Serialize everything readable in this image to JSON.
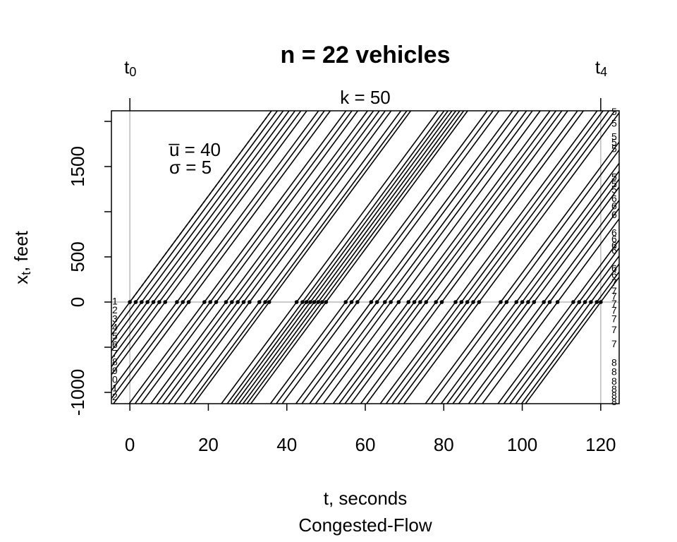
{
  "chart_data": {
    "type": "trajectory",
    "title": "n = 22 vehicles",
    "x_label": "t, seconds",
    "subtitle": "Congested-Flow",
    "y_label": {
      "main": "x",
      "sub": "t",
      "rest": ", feet"
    },
    "top_label": "k = 50",
    "top_ticks": [
      {
        "value": 0,
        "label": "t",
        "sub": "0"
      },
      {
        "value": 120,
        "label": "t",
        "sub": "4"
      }
    ],
    "annotations": {
      "mean": "u̅ = 40",
      "sd": "σ = 5",
      "mean_speed": 40
    },
    "xlim": [
      -4.7,
      124.7
    ],
    "ylim": [
      -1125,
      2117
    ],
    "xticks": [
      0,
      20,
      40,
      60,
      80,
      100,
      120
    ],
    "yticks": [
      -1000,
      {
        "value": -500,
        "label": null
      },
      0,
      500,
      {
        "value": 1000,
        "label": null
      },
      1500,
      {
        "value": 2000,
        "label": null
      }
    ],
    "color": "#000000",
    "crossings": [
      0,
      1.5,
      3,
      4.5,
      6,
      7.5,
      9,
      12,
      13.5,
      15,
      19,
      20.5,
      22,
      24.5,
      26,
      27.5,
      29,
      30.5,
      33,
      34.5,
      35.5,
      42.5,
      44,
      45,
      46,
      47,
      48,
      49,
      50,
      55,
      56.5,
      58,
      61.5,
      63,
      65,
      66.5,
      68.5,
      71,
      72.5,
      74,
      75.5,
      78,
      79.5,
      83,
      84.5,
      86,
      87.5,
      89,
      94.5,
      96,
      98.5,
      100,
      101.5,
      103,
      105.5,
      107,
      109,
      113,
      114.5,
      116,
      117.5,
      119,
      120
    ],
    "left_labels": [
      {
        "value": 0,
        "label": "1"
      },
      {
        "value": -96,
        "label": "2"
      },
      {
        "value": -192,
        "label": "3"
      },
      {
        "value": -288,
        "label": "4"
      },
      {
        "value": -384,
        "label": "5"
      },
      {
        "value": -480,
        "label": "6"
      },
      {
        "value": -576,
        "label": "7"
      },
      {
        "value": -672,
        "label": "8"
      },
      {
        "value": -768,
        "label": "9"
      },
      {
        "value": -864,
        "label": "0"
      },
      {
        "value": -960,
        "label": "1"
      },
      {
        "value": -1056,
        "label": "2"
      }
    ],
    "right_labels": [
      {
        "value": 2100,
        "label": "5"
      },
      {
        "value": 1970,
        "label": "5"
      },
      {
        "value": 1820,
        "label": "5"
      },
      {
        "value": 1760,
        "label": "5"
      },
      {
        "value": 1690,
        "label": "5"
      },
      {
        "value": 1375,
        "label": "5"
      },
      {
        "value": 1300,
        "label": "5"
      },
      {
        "value": 1235,
        "label": "5"
      },
      {
        "value": 1140,
        "label": "6"
      },
      {
        "value": 1055,
        "label": "6"
      },
      {
        "value": 960,
        "label": "6"
      },
      {
        "value": 760,
        "label": "6"
      },
      {
        "value": 690,
        "label": "6"
      },
      {
        "value": 620,
        "label": "6"
      },
      {
        "value": 565,
        "label": "6"
      },
      {
        "value": 365,
        "label": "6"
      },
      {
        "value": 295,
        "label": "6"
      },
      {
        "value": 210,
        "label": "7"
      },
      {
        "value": 115,
        "label": "7"
      },
      {
        "value": 55,
        "label": "7"
      },
      {
        "value": -25,
        "label": "7"
      },
      {
        "value": -100,
        "label": "7"
      },
      {
        "value": -195,
        "label": "7"
      },
      {
        "value": -315,
        "label": "7"
      },
      {
        "value": -470,
        "label": "7"
      },
      {
        "value": -680,
        "label": "8"
      },
      {
        "value": -780,
        "label": "8"
      },
      {
        "value": -885,
        "label": "8"
      },
      {
        "value": -970,
        "label": "8"
      },
      {
        "value": -1040,
        "label": "8"
      },
      {
        "value": -1110,
        "label": "8"
      }
    ]
  }
}
